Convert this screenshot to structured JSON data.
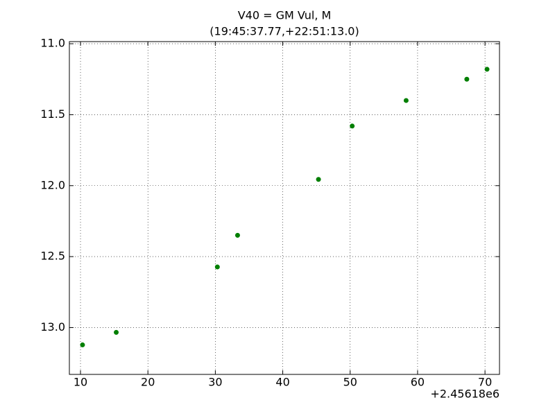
{
  "chart_data": {
    "type": "scatter",
    "title": "V40 = GM Vul, M",
    "subtitle": "(19:45:37.77,+22:51:13.0)",
    "x_offset_label": "+2.45618e6",
    "x": [
      10.3,
      15.3,
      30.3,
      33.3,
      45.3,
      50.3,
      58.3,
      67.3,
      70.3
    ],
    "values": [
      13.122,
      13.034,
      12.573,
      12.35,
      11.956,
      11.58,
      11.4,
      11.25,
      11.18
    ],
    "color": "#007f00",
    "xlim": [
      8.35,
      72.15
    ],
    "ylim": [
      13.33,
      10.985
    ],
    "xticks": [
      10,
      20,
      30,
      40,
      50,
      60,
      70
    ],
    "yticks": [
      {
        "value": 11,
        "label": "11.0"
      },
      {
        "value": 11.5,
        "label": "11.5"
      },
      {
        "value": 12,
        "label": "12.0"
      },
      {
        "value": 12.5,
        "label": "12.5"
      },
      {
        "value": 13,
        "label": "13.0"
      }
    ],
    "grid": true
  }
}
